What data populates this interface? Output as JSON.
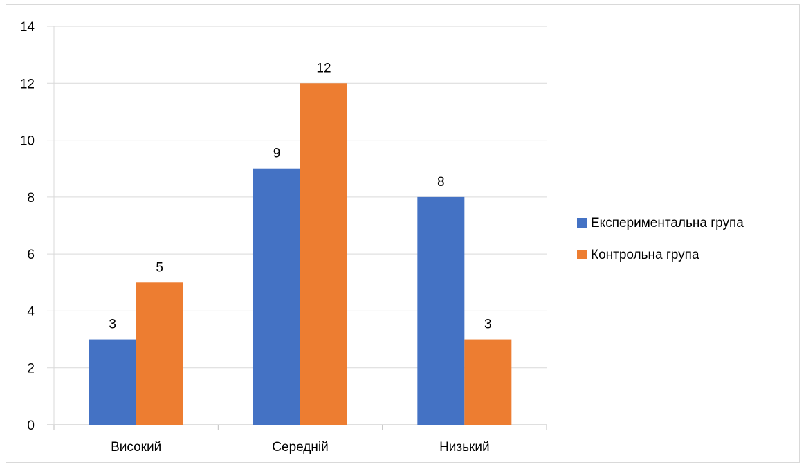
{
  "chart_data": {
    "type": "bar",
    "title": "",
    "xlabel": "",
    "ylabel": "",
    "categories": [
      "Високий",
      "Середній",
      "Низький"
    ],
    "series": [
      {
        "name": "Експериментальна група",
        "values": [
          3,
          9,
          8
        ],
        "color": "#4472C4"
      },
      {
        "name": "Контрольна група",
        "values": [
          5,
          12,
          3
        ],
        "color": "#ED7D31"
      }
    ],
    "ylim": [
      0,
      14
    ],
    "yticks": [
      0,
      2,
      4,
      6,
      8,
      10,
      12,
      14
    ],
    "grid": true,
    "legend_position": "right",
    "data_labels": true
  }
}
